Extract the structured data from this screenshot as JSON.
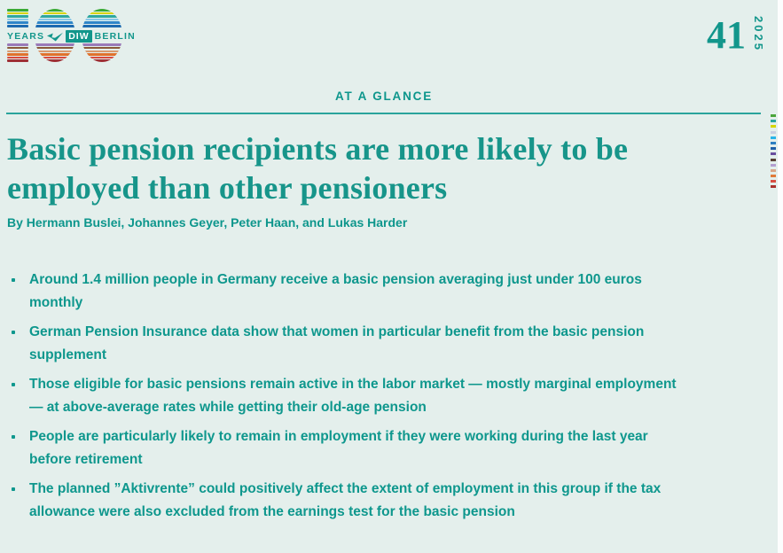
{
  "colors": {
    "background": "#e4efec",
    "accent_teal": "#12968b",
    "rule": "#2aa49c"
  },
  "header": {
    "logo": {
      "number": "100",
      "years": "YEARS",
      "diw": "DIW",
      "berlin": "BERLIN",
      "check_icon": "check-icon",
      "stripes_top": [
        "#3aaa35",
        "#d7d500",
        "#2fa8a0",
        "#86c7e8",
        "#2f86c8",
        "#1d6ab0"
      ],
      "stripes_bottom": [
        "#6a4f9e",
        "#9a7ab8",
        "#8a5a3b",
        "#d99a70",
        "#e0712c",
        "#d94a40",
        "#9e2f35"
      ]
    },
    "issue_number": "41",
    "year": "2025"
  },
  "kicker": "AT A GLANCE",
  "title": "Basic pension recipients are more likely to be\nemployed than other pensioners",
  "byline": "By Hermann Buslei, Johannes Geyer, Peter Haan, and Lukas Harder",
  "bullets": [
    "Around 1.4 million people in Germany receive a basic pension averaging just under 100 euros\nmonthly",
    "German Pension Insurance data show that women in particular benefit from the basic pension\nsupplement",
    "Those eligible for basic pensions remain active in the labor market — mostly marginal employment\n— at above-average rates while getting their old-age pension",
    "People are particularly likely to remain in employment if they were working during the last year\nbefore retirement",
    "The planned ”Aktivrente” could positively affect the extent of employment in this group if the tax\nallowance were also excluded from the earnings test for the basic pension"
  ],
  "edge_marks": [
    "#4aa53b",
    "#2aa7a0",
    "#d6d600",
    "#c9cfe0",
    "#29b5e8",
    "#2e7fc2",
    "#1f5fa8",
    "#6a4f9e",
    "#5a4238",
    "#b49fd0",
    "#d9a688",
    "#e07b3a",
    "#d94f43",
    "#a8322f"
  ]
}
